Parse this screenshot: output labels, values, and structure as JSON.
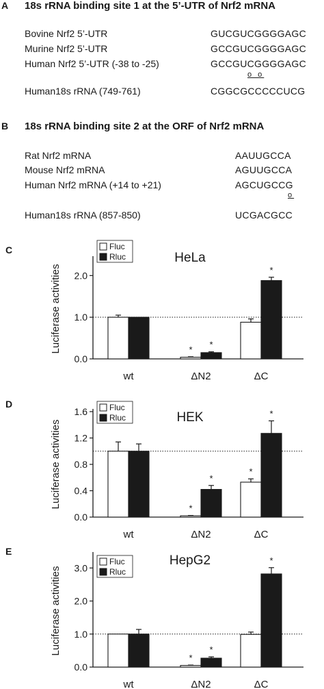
{
  "panel_a": {
    "letter": "A",
    "heading": "18s rRNA binding site 1 at the 5’-UTR of Nrf2 mRNA",
    "rows": [
      {
        "label": "Bovine Nrf2 5’-UTR",
        "seq": "GUCGUCGGGGAGC"
      },
      {
        "label": "Murine  Nrf2 5’-UTR",
        "seq": "GCCGUCGGGGAGC"
      },
      {
        "label": "Human Nrf2 5’-UTR (-38 to -25)",
        "seq": "GCCGUCGGGGAGC"
      }
    ],
    "marks": "o o",
    "rrna": {
      "label": "Human18s rRNA (749-761)",
      "seq": "CGGCGCCCCCUCG"
    }
  },
  "panel_b": {
    "letter": "B",
    "heading": "18s rRNA binding site 2 at the ORF of Nrf2 mRNA",
    "rows": [
      {
        "label": "Rat Nrf2 mRNA",
        "seq": "AAUUGCCA"
      },
      {
        "label": "Mouse Nrf2 mRNA",
        "seq": "AGUUGCCA"
      },
      {
        "label": "Human Nrf2 mRNA (+14 to +21)",
        "seq": "AGCUGCCG"
      }
    ],
    "marks": "o",
    "rrna": {
      "label": "Human18s rRNA (857-850)",
      "seq": "UCGACGCC"
    }
  },
  "colors": {
    "fluc": "#ffffff",
    "rluc": "#1a1a1a",
    "axis": "#1a1a1a"
  },
  "chart_data": [
    {
      "panel": "C",
      "type": "bar",
      "title": "HeLa",
      "ylabel": "Luciferase activities",
      "ylim": [
        0,
        2.4
      ],
      "yticks": [
        0,
        1,
        2
      ],
      "ytick_labels": [
        "0.0",
        "1.0",
        "2.0"
      ],
      "reference_line": 1.0,
      "categories": [
        "wt",
        "ΔN2",
        "ΔC"
      ],
      "legend_position": "top-left",
      "series": [
        {
          "name": "Fluc",
          "values": [
            1.0,
            0.04,
            0.88
          ],
          "errors": [
            0.05,
            0.01,
            0.08
          ],
          "significant": [
            false,
            true,
            false
          ]
        },
        {
          "name": "Rluc",
          "values": [
            1.0,
            0.15,
            1.88
          ],
          "errors": [
            0.0,
            0.02,
            0.08
          ],
          "significant": [
            false,
            true,
            true
          ]
        }
      ]
    },
    {
      "panel": "D",
      "type": "bar",
      "title": "HEK",
      "ylabel": "Luciferase activities",
      "ylim": [
        0,
        1.6
      ],
      "yticks": [
        0,
        0.4,
        0.8,
        1.2,
        1.6
      ],
      "ytick_labels": [
        "0.0",
        "0.4",
        "0.8",
        "1.2",
        "1.6"
      ],
      "reference_line": 1.0,
      "categories": [
        "wt",
        "ΔN2",
        "ΔC"
      ],
      "legend_position": "top-left",
      "series": [
        {
          "name": "Fluc",
          "values": [
            1.0,
            0.02,
            0.53
          ],
          "errors": [
            0.14,
            0.005,
            0.05
          ],
          "significant": [
            false,
            true,
            true
          ]
        },
        {
          "name": "Rluc",
          "values": [
            1.0,
            0.42,
            1.27
          ],
          "errors": [
            0.11,
            0.06,
            0.19
          ],
          "significant": [
            false,
            true,
            true
          ]
        }
      ]
    },
    {
      "panel": "E",
      "type": "bar",
      "title": "HepG2",
      "ylabel": "Luciferase activities",
      "ylim": [
        0,
        3.4
      ],
      "yticks": [
        0,
        1,
        2,
        3
      ],
      "ytick_labels": [
        "0.0",
        "1.0",
        "2.0",
        "3.0"
      ],
      "reference_line": 1.0,
      "categories": [
        "wt",
        "ΔN2",
        "ΔC"
      ],
      "legend_position": "top-left",
      "series": [
        {
          "name": "Fluc",
          "values": [
            1.0,
            0.05,
            0.99
          ],
          "errors": [
            0.0,
            0.01,
            0.07
          ],
          "significant": [
            false,
            true,
            false
          ]
        },
        {
          "name": "Rluc",
          "values": [
            1.0,
            0.27,
            2.82
          ],
          "errors": [
            0.14,
            0.04,
            0.19
          ],
          "significant": [
            false,
            true,
            true
          ]
        }
      ]
    }
  ]
}
